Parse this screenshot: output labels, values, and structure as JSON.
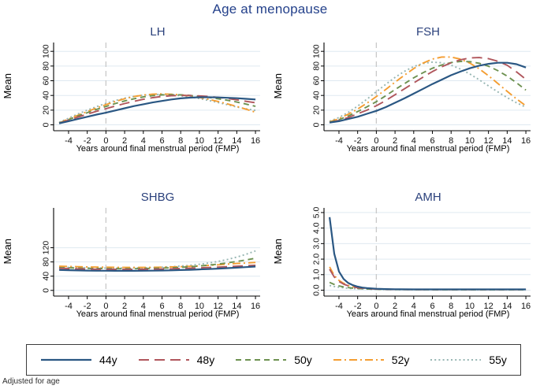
{
  "title": "Age at menopause",
  "footnote": "Adjusted for age",
  "palette": {
    "title_navy": "#24418b",
    "panel_title_navy": "#2b417c",
    "gridline": "#dfe9f1",
    "reference_line": "#c9c9c9",
    "axis": "#000000",
    "legend_border": "#3c3c3c"
  },
  "layout": {
    "legend_position": "bottom",
    "grid": "horizontal",
    "panels": [
      "LH",
      "FSH",
      "SHBG",
      "AMH"
    ]
  },
  "series": [
    {
      "label": "44y",
      "color": "#2a5783",
      "dash": "solid"
    },
    {
      "label": "48y",
      "color": "#b0565c",
      "dash": "long-dash"
    },
    {
      "label": "50y",
      "color": "#6d9150",
      "dash": "dash"
    },
    {
      "label": "52y",
      "color": "#f49d31",
      "dash": "dash-dot"
    },
    {
      "label": "55y",
      "color": "#97b6b3",
      "dash": "dot"
    }
  ],
  "chart_data": [
    {
      "type": "line",
      "title": "LH",
      "xlabel": "Years around final menstrual period (FMP)",
      "ylabel": "Mean",
      "xlim": [
        -5.6,
        16.5
      ],
      "ylim": [
        -8,
        112
      ],
      "xticks": [
        -4,
        -2,
        0,
        2,
        4,
        6,
        8,
        10,
        12,
        14,
        16
      ],
      "yticks": [
        0,
        20,
        40,
        60,
        80,
        100
      ],
      "ytick_decimals": 0,
      "ref_line_x": 0,
      "x": [
        -5,
        -4,
        -3,
        -2,
        -1,
        0,
        1,
        2,
        3,
        4,
        5,
        6,
        7,
        8,
        9,
        10,
        11,
        12,
        13,
        14,
        15,
        16
      ],
      "series": [
        {
          "name": "44y",
          "values": [
            2,
            5,
            8,
            11,
            14,
            16.5,
            19.5,
            22.5,
            25.5,
            28,
            30.5,
            32.5,
            34.5,
            36,
            37,
            37.5,
            37.5,
            37.3,
            36.8,
            36.2,
            35.4,
            34.5
          ]
        },
        {
          "name": "48y",
          "values": [
            2.2,
            6.5,
            10.5,
            14.5,
            18.5,
            22,
            25.5,
            29,
            32,
            34.8,
            37,
            38.6,
            39.6,
            40,
            39.9,
            39.4,
            38.5,
            37.3,
            35.8,
            34,
            32,
            30
          ]
        },
        {
          "name": "50y",
          "values": [
            2.5,
            7,
            12,
            16.5,
            21,
            25,
            29,
            32.5,
            35.5,
            38,
            39.8,
            40.8,
            41,
            40.7,
            40,
            38.8,
            37.3,
            35.5,
            33.5,
            31,
            28.2,
            25.2
          ]
        },
        {
          "name": "52y",
          "values": [
            2.5,
            8,
            13,
            18,
            23,
            27.5,
            31.8,
            35.5,
            38.5,
            40.5,
            41.7,
            42,
            41.6,
            40.7,
            39.2,
            37.2,
            34.7,
            31.8,
            28.5,
            25,
            21.2,
            17.2
          ]
        },
        {
          "name": "55y",
          "values": [
            3.5,
            9,
            14.8,
            20,
            24.8,
            29.2,
            33,
            36.2,
            38.7,
            40.4,
            41.3,
            41.4,
            40.8,
            39.6,
            37.9,
            35.7,
            33.2,
            30.4,
            27.4,
            24.2,
            21.8,
            19.6
          ]
        }
      ]
    },
    {
      "type": "line",
      "title": "FSH",
      "xlabel": "Years around final menstrual period (FMP)",
      "ylabel": "Mean",
      "xlim": [
        -5.6,
        16.5
      ],
      "ylim": [
        -8,
        112
      ],
      "xticks": [
        -4,
        -2,
        0,
        2,
        4,
        6,
        8,
        10,
        12,
        14,
        16
      ],
      "yticks": [
        0,
        20,
        40,
        60,
        80,
        100
      ],
      "ytick_decimals": 0,
      "ref_line_x": 0,
      "x": [
        -5,
        -4,
        -3,
        -2,
        -1,
        0,
        1,
        2,
        3,
        4,
        5,
        6,
        7,
        8,
        9,
        10,
        11,
        12,
        13,
        14,
        15,
        16
      ],
      "series": [
        {
          "name": "44y",
          "values": [
            3,
            5,
            8,
            11,
            15,
            19,
            24,
            30,
            36,
            42.5,
            49,
            55.5,
            61.5,
            67.5,
            72.5,
            77,
            80.5,
            83,
            84.5,
            84.5,
            82.5,
            78
          ]
        },
        {
          "name": "48y",
          "values": [
            3,
            6,
            10,
            15,
            20,
            26,
            33,
            41,
            49,
            57,
            65,
            72.5,
            79,
            84.5,
            88.5,
            91,
            91.5,
            90,
            86.5,
            81,
            72,
            62
          ]
        },
        {
          "name": "50y",
          "values": [
            3.5,
            7,
            12,
            18,
            24.5,
            31.5,
            39.5,
            48,
            56,
            64,
            71,
            77,
            81.5,
            84.7,
            86.3,
            86,
            83.8,
            79.8,
            73.8,
            66.3,
            57.3,
            47.3
          ]
        },
        {
          "name": "52y",
          "values": [
            4,
            8.5,
            14.5,
            21.5,
            29.5,
            38.5,
            48,
            58,
            67.5,
            76.5,
            84,
            89.5,
            92.3,
            92.3,
            89.4,
            84,
            76.3,
            66.8,
            56.3,
            45.6,
            35.3,
            26
          ]
        },
        {
          "name": "55y",
          "values": [
            5,
            10,
            17,
            25.5,
            35,
            45,
            55,
            64.5,
            72.8,
            79.3,
            83.5,
            85.3,
            84.5,
            81.3,
            76,
            69.2,
            61.3,
            53,
            44.8,
            37,
            30,
            24
          ]
        }
      ]
    },
    {
      "type": "line",
      "title": "SHBG",
      "xlabel": "Years around final menstrual period (FMP)",
      "ylabel": "Mean",
      "xlim": [
        -5.6,
        16.5
      ],
      "ylim": [
        -16,
        232
      ],
      "xticks": [
        -4,
        -2,
        0,
        2,
        4,
        6,
        8,
        10,
        12,
        14,
        16
      ],
      "yticks": [
        0,
        40,
        80,
        120
      ],
      "ytick_decimals": 0,
      "ref_line_x": 0,
      "x": [
        -5,
        -4,
        -3,
        -2,
        -1,
        0,
        1,
        2,
        3,
        4,
        5,
        6,
        7,
        8,
        9,
        10,
        11,
        12,
        13,
        14,
        15,
        16
      ],
      "series": [
        {
          "name": "44y",
          "values": [
            57.5,
            56.8,
            56.2,
            55.8,
            55.4,
            55.2,
            55,
            55,
            55,
            55.2,
            55.5,
            56,
            56.5,
            57.2,
            58,
            59,
            60,
            61.2,
            62.5,
            64,
            65.5,
            67
          ]
        },
        {
          "name": "48y",
          "values": [
            62,
            61.2,
            60.5,
            60,
            59.6,
            59.3,
            59.1,
            59,
            59,
            59.2,
            59.5,
            60,
            60.6,
            61.4,
            62.3,
            63.3,
            64.4,
            65.5,
            66.7,
            68,
            69.3,
            70.5
          ]
        },
        {
          "name": "50y",
          "values": [
            64,
            63.2,
            62.5,
            62,
            61.6,
            61.3,
            61.1,
            61,
            61.1,
            61.4,
            61.9,
            62.6,
            63.6,
            64.9,
            66.5,
            68.5,
            71,
            74,
            77.5,
            81.4,
            85.7,
            90.5
          ]
        },
        {
          "name": "52y",
          "values": [
            68,
            67.2,
            66.5,
            66,
            65.5,
            65.2,
            64.9,
            64.7,
            64.6,
            64.7,
            64.9,
            65.3,
            65.9,
            66.7,
            67.7,
            68.9,
            70.3,
            72,
            73.8,
            75.6,
            77,
            78.5
          ]
        },
        {
          "name": "55y",
          "values": [
            65.5,
            64.7,
            64,
            63.5,
            63.1,
            62.9,
            62.8,
            62.8,
            63,
            63.4,
            64.1,
            65.1,
            66.5,
            68.3,
            70.6,
            73.4,
            77,
            81.5,
            87,
            93.5,
            101.5,
            111
          ]
        }
      ]
    },
    {
      "type": "line",
      "title": "AMH",
      "xlabel": "Years around final menstrual period (FMP)",
      "ylabel": "Mean",
      "xlim": [
        -5.6,
        16.5
      ],
      "ylim": [
        -0.38,
        5.3
      ],
      "xticks": [
        -4,
        -2,
        0,
        2,
        4,
        6,
        8,
        10,
        12,
        14,
        16
      ],
      "yticks": [
        0,
        1,
        2,
        3,
        4,
        5
      ],
      "ytick_decimals": 1,
      "ref_line_x": 0,
      "x": [
        -5,
        -4.5,
        -4,
        -3.5,
        -3,
        -2.5,
        -2,
        -1.5,
        -1,
        0,
        1,
        2,
        4,
        6,
        8,
        10,
        12,
        14,
        16
      ],
      "series": [
        {
          "name": "44y",
          "values": [
            4.7,
            2.35,
            1.2,
            0.72,
            0.46,
            0.32,
            0.23,
            0.17,
            0.13,
            0.09,
            0.07,
            0.06,
            0.05,
            0.05,
            0.05,
            0.05,
            0.05,
            0.05,
            0.05
          ]
        },
        {
          "name": "48y",
          "values": [
            1.35,
            0.85,
            0.56,
            0.39,
            0.28,
            0.21,
            0.16,
            0.13,
            0.1,
            0.07,
            0.06,
            0.05,
            0.04,
            0.04,
            0.04,
            0.04,
            0.04,
            0.04,
            0.04
          ]
        },
        {
          "name": "50y",
          "values": [
            0.5,
            0.37,
            0.28,
            0.21,
            0.17,
            0.13,
            0.11,
            0.09,
            0.08,
            0.06,
            0.05,
            0.04,
            0.04,
            0.03,
            0.03,
            0.03,
            0.03,
            0.03,
            0.03
          ]
        },
        {
          "name": "52y",
          "values": [
            1.5,
            0.95,
            0.63,
            0.44,
            0.31,
            0.23,
            0.18,
            0.14,
            0.11,
            0.08,
            0.06,
            0.05,
            0.04,
            0.04,
            0.04,
            0.04,
            0.04,
            0.04,
            0.04
          ]
        },
        {
          "name": "55y",
          "values": [
            0.3,
            0.24,
            0.19,
            0.15,
            0.12,
            0.1,
            0.09,
            0.08,
            0.07,
            0.05,
            0.04,
            0.04,
            0.03,
            0.03,
            0.03,
            0.03,
            0.03,
            0.03,
            0.03
          ]
        }
      ]
    }
  ]
}
